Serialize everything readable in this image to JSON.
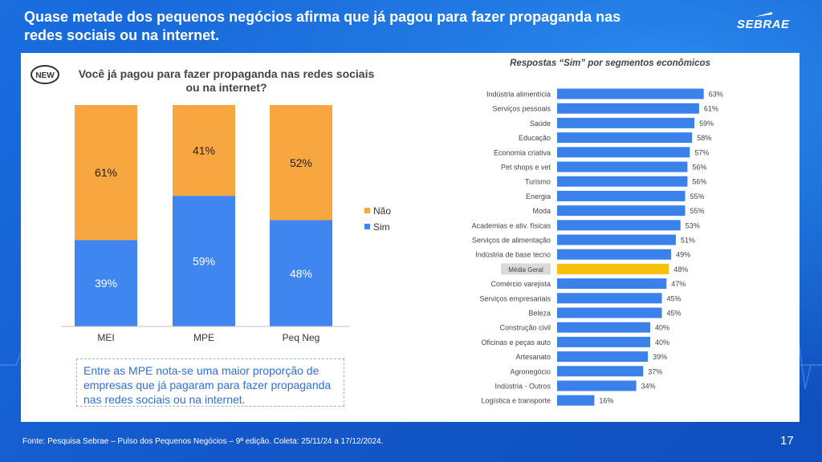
{
  "slide": {
    "headline": "Quase metade dos pequenos negócios afirma que já pagou para fazer propaganda nas redes sociais ou na internet.",
    "logo_text": "SEBRAE",
    "badge": "NEW",
    "footer": "Fonte: Pesquisa Sebrae – Pulso dos Pequenos Negócios – 9ª edição. Coleta: 25/11/24 a 17/12/2024.",
    "page_number": "17",
    "note": "Entre as MPE nota-se uma maior proporção de empresas que já pagaram para fazer propaganda nas redes sociais ou na internet."
  },
  "colors": {
    "sim": "#3f86f0",
    "nao": "#f7a640",
    "highlight": "#fbbf0e",
    "bar_right": "#3a82ea"
  },
  "chart_data": [
    {
      "type": "bar",
      "stacked": true,
      "title": "Você já pagou para fazer propaganda nas redes sociais ou na internet?",
      "categories": [
        "MEI",
        "MPE",
        "Peq Neg"
      ],
      "series": [
        {
          "name": "Sim",
          "values": [
            39,
            59,
            48
          ],
          "labels": [
            "39%",
            "59%",
            "48%"
          ]
        },
        {
          "name": "Não",
          "values": [
            61,
            41,
            52
          ],
          "labels": [
            "61%",
            "41%",
            "52%"
          ]
        }
      ],
      "ylim": [
        0,
        100
      ],
      "legend": "right",
      "legend_order": [
        "Não",
        "Sim"
      ]
    },
    {
      "type": "bar",
      "orientation": "horizontal",
      "title": "Respostas “Sim” por segmentos econômicos",
      "categories": [
        "Indústria alimentícia",
        "Serviços pessoais",
        "Saúde",
        "Educação",
        "Economia criativa",
        "Pet shops e vet",
        "Turismo",
        "Energia",
        "Moda",
        "Academias e ativ. físicas",
        "Serviços de alimentação",
        "Indústria de base tecno",
        "Média Geral",
        "Comércio varejista",
        "Serviços empresariais",
        "Beleza",
        "Construção civil",
        "Oficinas e peças auto",
        "Artesanato",
        "Agronegócio",
        "Indústria - Outros",
        "Logística e transporte"
      ],
      "values": [
        63,
        61,
        59,
        58,
        57,
        56,
        56,
        55,
        55,
        53,
        51,
        49,
        48,
        47,
        45,
        45,
        40,
        40,
        39,
        37,
        34,
        16
      ],
      "labels": [
        "63%",
        "61%",
        "59%",
        "58%",
        "57%",
        "56%",
        "56%",
        "55%",
        "55%",
        "53%",
        "51%",
        "49%",
        "48%",
        "47%",
        "45%",
        "45%",
        "40%",
        "40%",
        "39%",
        "37%",
        "34%",
        "16%"
      ],
      "highlight_category": "Média Geral"
    }
  ]
}
